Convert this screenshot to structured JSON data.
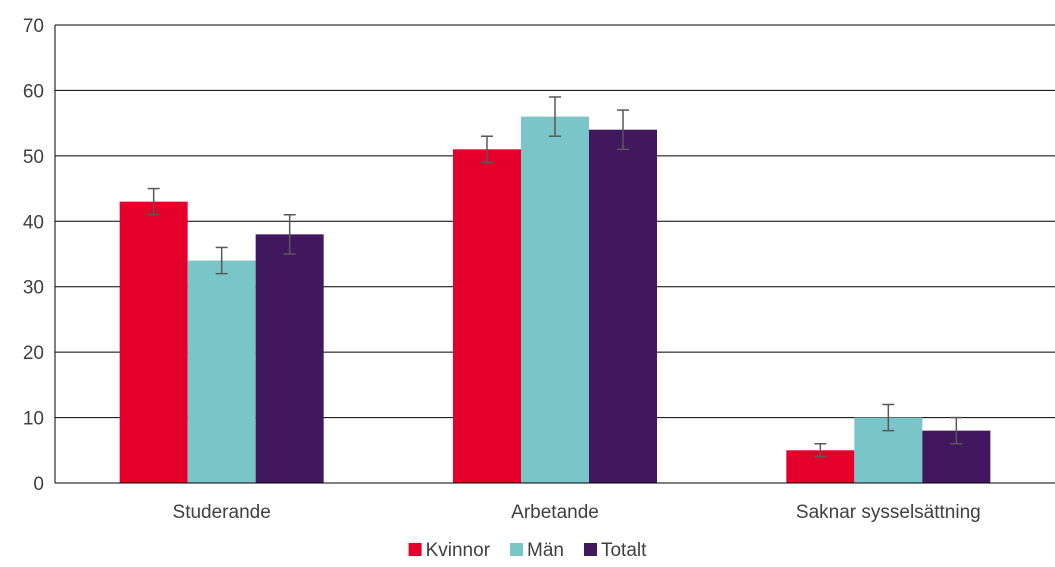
{
  "chart_data": {
    "type": "bar",
    "title": "",
    "xlabel": "",
    "ylabel": "",
    "ylim": [
      0,
      70
    ],
    "yticks": [
      0,
      10,
      20,
      30,
      40,
      50,
      60,
      70
    ],
    "grid": true,
    "legend_position": "bottom",
    "categories": [
      "Studerande",
      "Arbetande",
      "Saknar sysselsättning"
    ],
    "series": [
      {
        "name": "Kvinnor",
        "color": "#e4002b",
        "values": [
          43,
          51,
          5
        ],
        "err_low": [
          41,
          49,
          4
        ],
        "err_high": [
          45,
          53,
          6
        ]
      },
      {
        "name": "Män",
        "color": "#7ac5c8",
        "values": [
          34,
          56,
          10
        ],
        "err_low": [
          32,
          53,
          8
        ],
        "err_high": [
          36,
          59,
          12
        ]
      },
      {
        "name": "Totalt",
        "color": "#41175e",
        "values": [
          38,
          54,
          8
        ],
        "err_low": [
          35,
          51,
          6
        ],
        "err_high": [
          41,
          57,
          10
        ]
      }
    ]
  }
}
